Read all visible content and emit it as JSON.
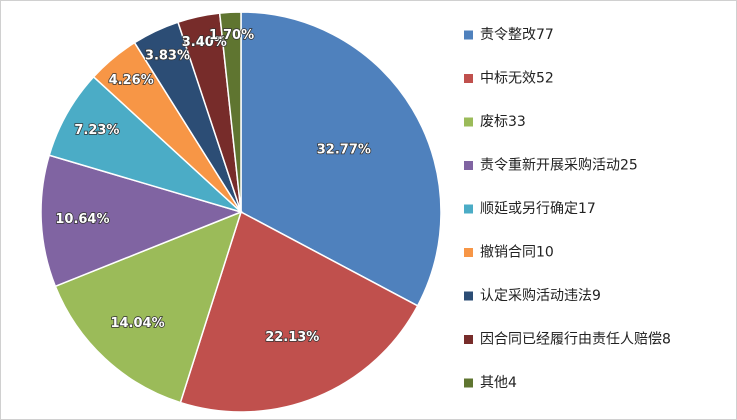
{
  "chart_data": {
    "type": "pie",
    "categories": [
      "责令整改77",
      "中标无效52",
      "废标33",
      "责令重新开展采购活动25",
      "顺延或另行确定17",
      "撤销合同10",
      "认定采购活动违法9",
      "因合同已经履行由责任人赔偿8",
      "其他4"
    ],
    "values": [
      32.77,
      22.13,
      14.04,
      10.64,
      7.23,
      4.26,
      3.83,
      3.4,
      1.7
    ],
    "value_labels": [
      "32.77%",
      "22.13%",
      "14.04%",
      "10.64%",
      "7.23%",
      "4.26%",
      "3.83%",
      "3.40%",
      "1.70%"
    ],
    "colors": [
      "#4f81bd",
      "#c0504d",
      "#9bbb59",
      "#8064a2",
      "#4bacc6",
      "#f79646",
      "#2c4d75",
      "#772c2a",
      "#5f7530"
    ],
    "legend": "right"
  }
}
